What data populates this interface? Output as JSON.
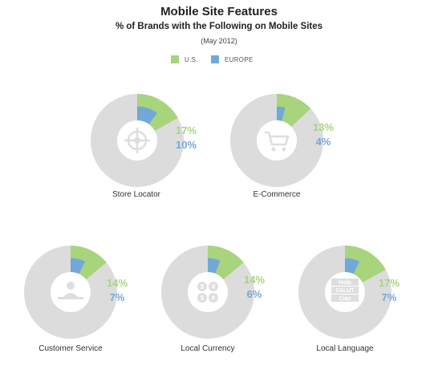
{
  "colors": {
    "us": "#a8d47c",
    "europe": "#72a8d8",
    "base": "#dcdcdc",
    "inner": "#ffffff",
    "icon": "#dedede"
  },
  "chart_data": {
    "type": "pie",
    "title": "Mobile Site Features",
    "subtitle": "% of Brands with the Following on Mobile Sites",
    "date_note": "(May 2012)",
    "series_names": [
      "U.S.",
      "EUROPE"
    ],
    "panels": [
      {
        "label": "Store Locator",
        "us": 17,
        "europe": 10,
        "us_label": "17%",
        "europe_label": "10%",
        "icon": "crosshair-icon"
      },
      {
        "label": "E-Commerce",
        "us": 13,
        "europe": 4,
        "us_label": "13%",
        "europe_label": "4%",
        "icon": "shopping-cart-icon"
      },
      {
        "label": "Customer Service",
        "us": 14,
        "europe": 7,
        "us_label": "14%",
        "europe_label": "7%",
        "icon": "person-at-desk-icon"
      },
      {
        "label": "Local Currency",
        "us": 14,
        "europe": 6,
        "us_label": "14%",
        "europe_label": "6%",
        "icon": "currency-coins-icon"
      },
      {
        "label": "Local Language",
        "us": 17,
        "europe": 7,
        "us_label": "17%",
        "europe_label": "7%",
        "icon": "greeting-words-icon",
        "icon_words": [
          "Hola",
          "SALUT",
          "Ciao"
        ]
      }
    ]
  }
}
